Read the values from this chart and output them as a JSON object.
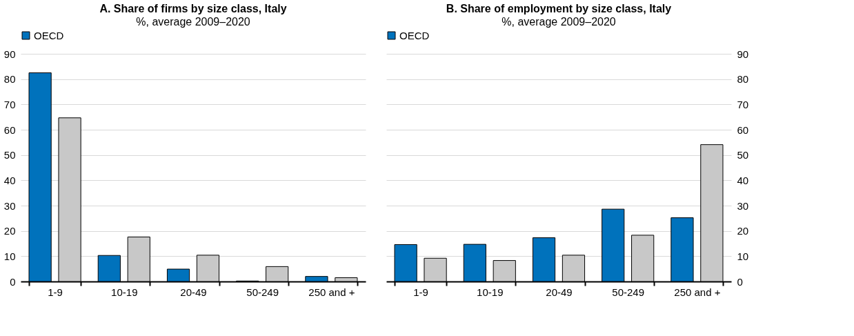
{
  "chart_data": [
    {
      "type": "bar",
      "title": "A. Share of firms by size class, Italy",
      "subtitle": "%, average 2009–2020",
      "categories": [
        "1-9",
        "10-19",
        "20-49",
        "50-249",
        "250 and +"
      ],
      "series": [
        {
          "name": "OECD",
          "color": "#0072bc",
          "values": [
            82.5,
            10.3,
            4.9,
            0.2,
            2.0
          ]
        },
        {
          "color": "#c8c8c8",
          "values": [
            64.7,
            17.6,
            10.4,
            5.9,
            1.5
          ]
        }
      ],
      "ylim": [
        0,
        90
      ],
      "yticks": [
        0,
        10,
        20,
        30,
        40,
        50,
        60,
        70,
        80,
        90
      ],
      "grid": "y",
      "legend": "top"
    },
    {
      "type": "bar",
      "title": "B. Share of employment by size class, Italy",
      "subtitle": "%, average 2009–2020",
      "categories": [
        "1-9",
        "10-19",
        "20-49",
        "50-249",
        "250 and +"
      ],
      "series": [
        {
          "name": "OECD",
          "color": "#0072bc",
          "values": [
            14.6,
            14.7,
            17.3,
            28.6,
            25.2
          ]
        },
        {
          "color": "#c8c8c8",
          "values": [
            9.2,
            8.3,
            10.4,
            18.3,
            54.1
          ]
        }
      ],
      "ylim": [
        0,
        90
      ],
      "yticks": [
        0,
        10,
        20,
        30,
        40,
        50,
        60,
        70,
        80,
        90
      ],
      "grid": "y",
      "legend": "top"
    }
  ]
}
